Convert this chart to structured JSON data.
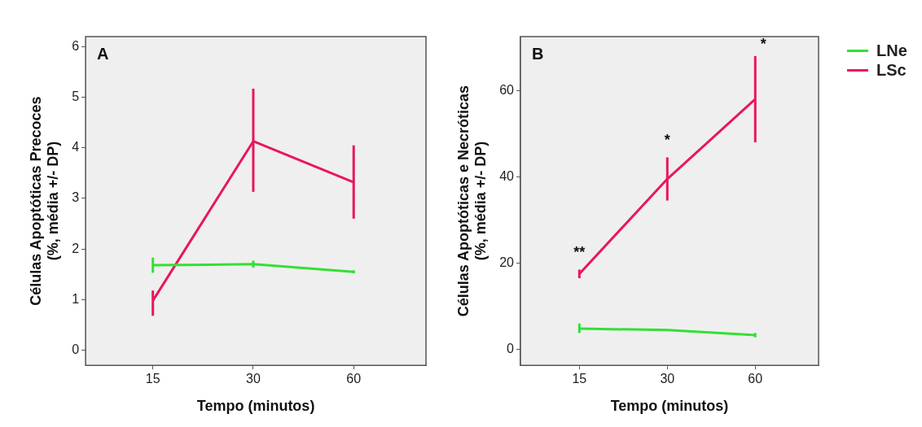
{
  "chart_data": [
    {
      "type": "line",
      "title": "A",
      "xlabel": "Tempo (minutos)",
      "ylabel": "Células Apoptóticas Precoces\n(%, média +/- DP)",
      "categories": [
        "15",
        "30",
        "60"
      ],
      "ylim": [
        -0.3,
        6.2
      ],
      "yticks": [
        0,
        1,
        2,
        3,
        4,
        5,
        6
      ],
      "marker": "none",
      "line_style": "solid",
      "series": [
        {
          "color": "#33e033",
          "values": [
            1.68,
            1.7,
            1.55
          ],
          "errors": [
            [
              1.53,
              1.83
            ],
            [
              1.63,
              1.77
            ],
            [
              1.52,
              1.58
            ]
          ]
        },
        {
          "color": "#e8175d",
          "values": [
            0.98,
            4.13,
            3.32
          ],
          "errors": [
            [
              0.68,
              1.18
            ],
            [
              3.13,
              5.17
            ],
            [
              2.6,
              4.05
            ]
          ]
        }
      ]
    },
    {
      "type": "line",
      "title": "B",
      "xlabel": "Tempo (minutos)",
      "ylabel": "Células Apoptóticas e Necróticas\n(%, média +/- DP)",
      "categories": [
        "15",
        "30",
        "60"
      ],
      "ylim": [
        -3.7,
        72.5
      ],
      "yticks": [
        0,
        20,
        40,
        60
      ],
      "legend": "right",
      "marker": "none",
      "line_style": "solid",
      "annotations": [
        "**",
        "*",
        "*"
      ],
      "series": [
        {
          "name": "LNe",
          "color": "#33e033",
          "values": [
            4.8,
            4.5,
            3.3
          ],
          "errors": [
            [
              3.8,
              6.0
            ],
            null,
            [
              2.8,
              3.8
            ]
          ]
        },
        {
          "name": "LSc",
          "color": "#e8175d",
          "values": [
            17.5,
            39.5,
            58
          ],
          "errors": [
            [
              16.5,
              18.5
            ],
            [
              34.5,
              44.5
            ],
            [
              48,
              68
            ]
          ]
        }
      ]
    }
  ]
}
